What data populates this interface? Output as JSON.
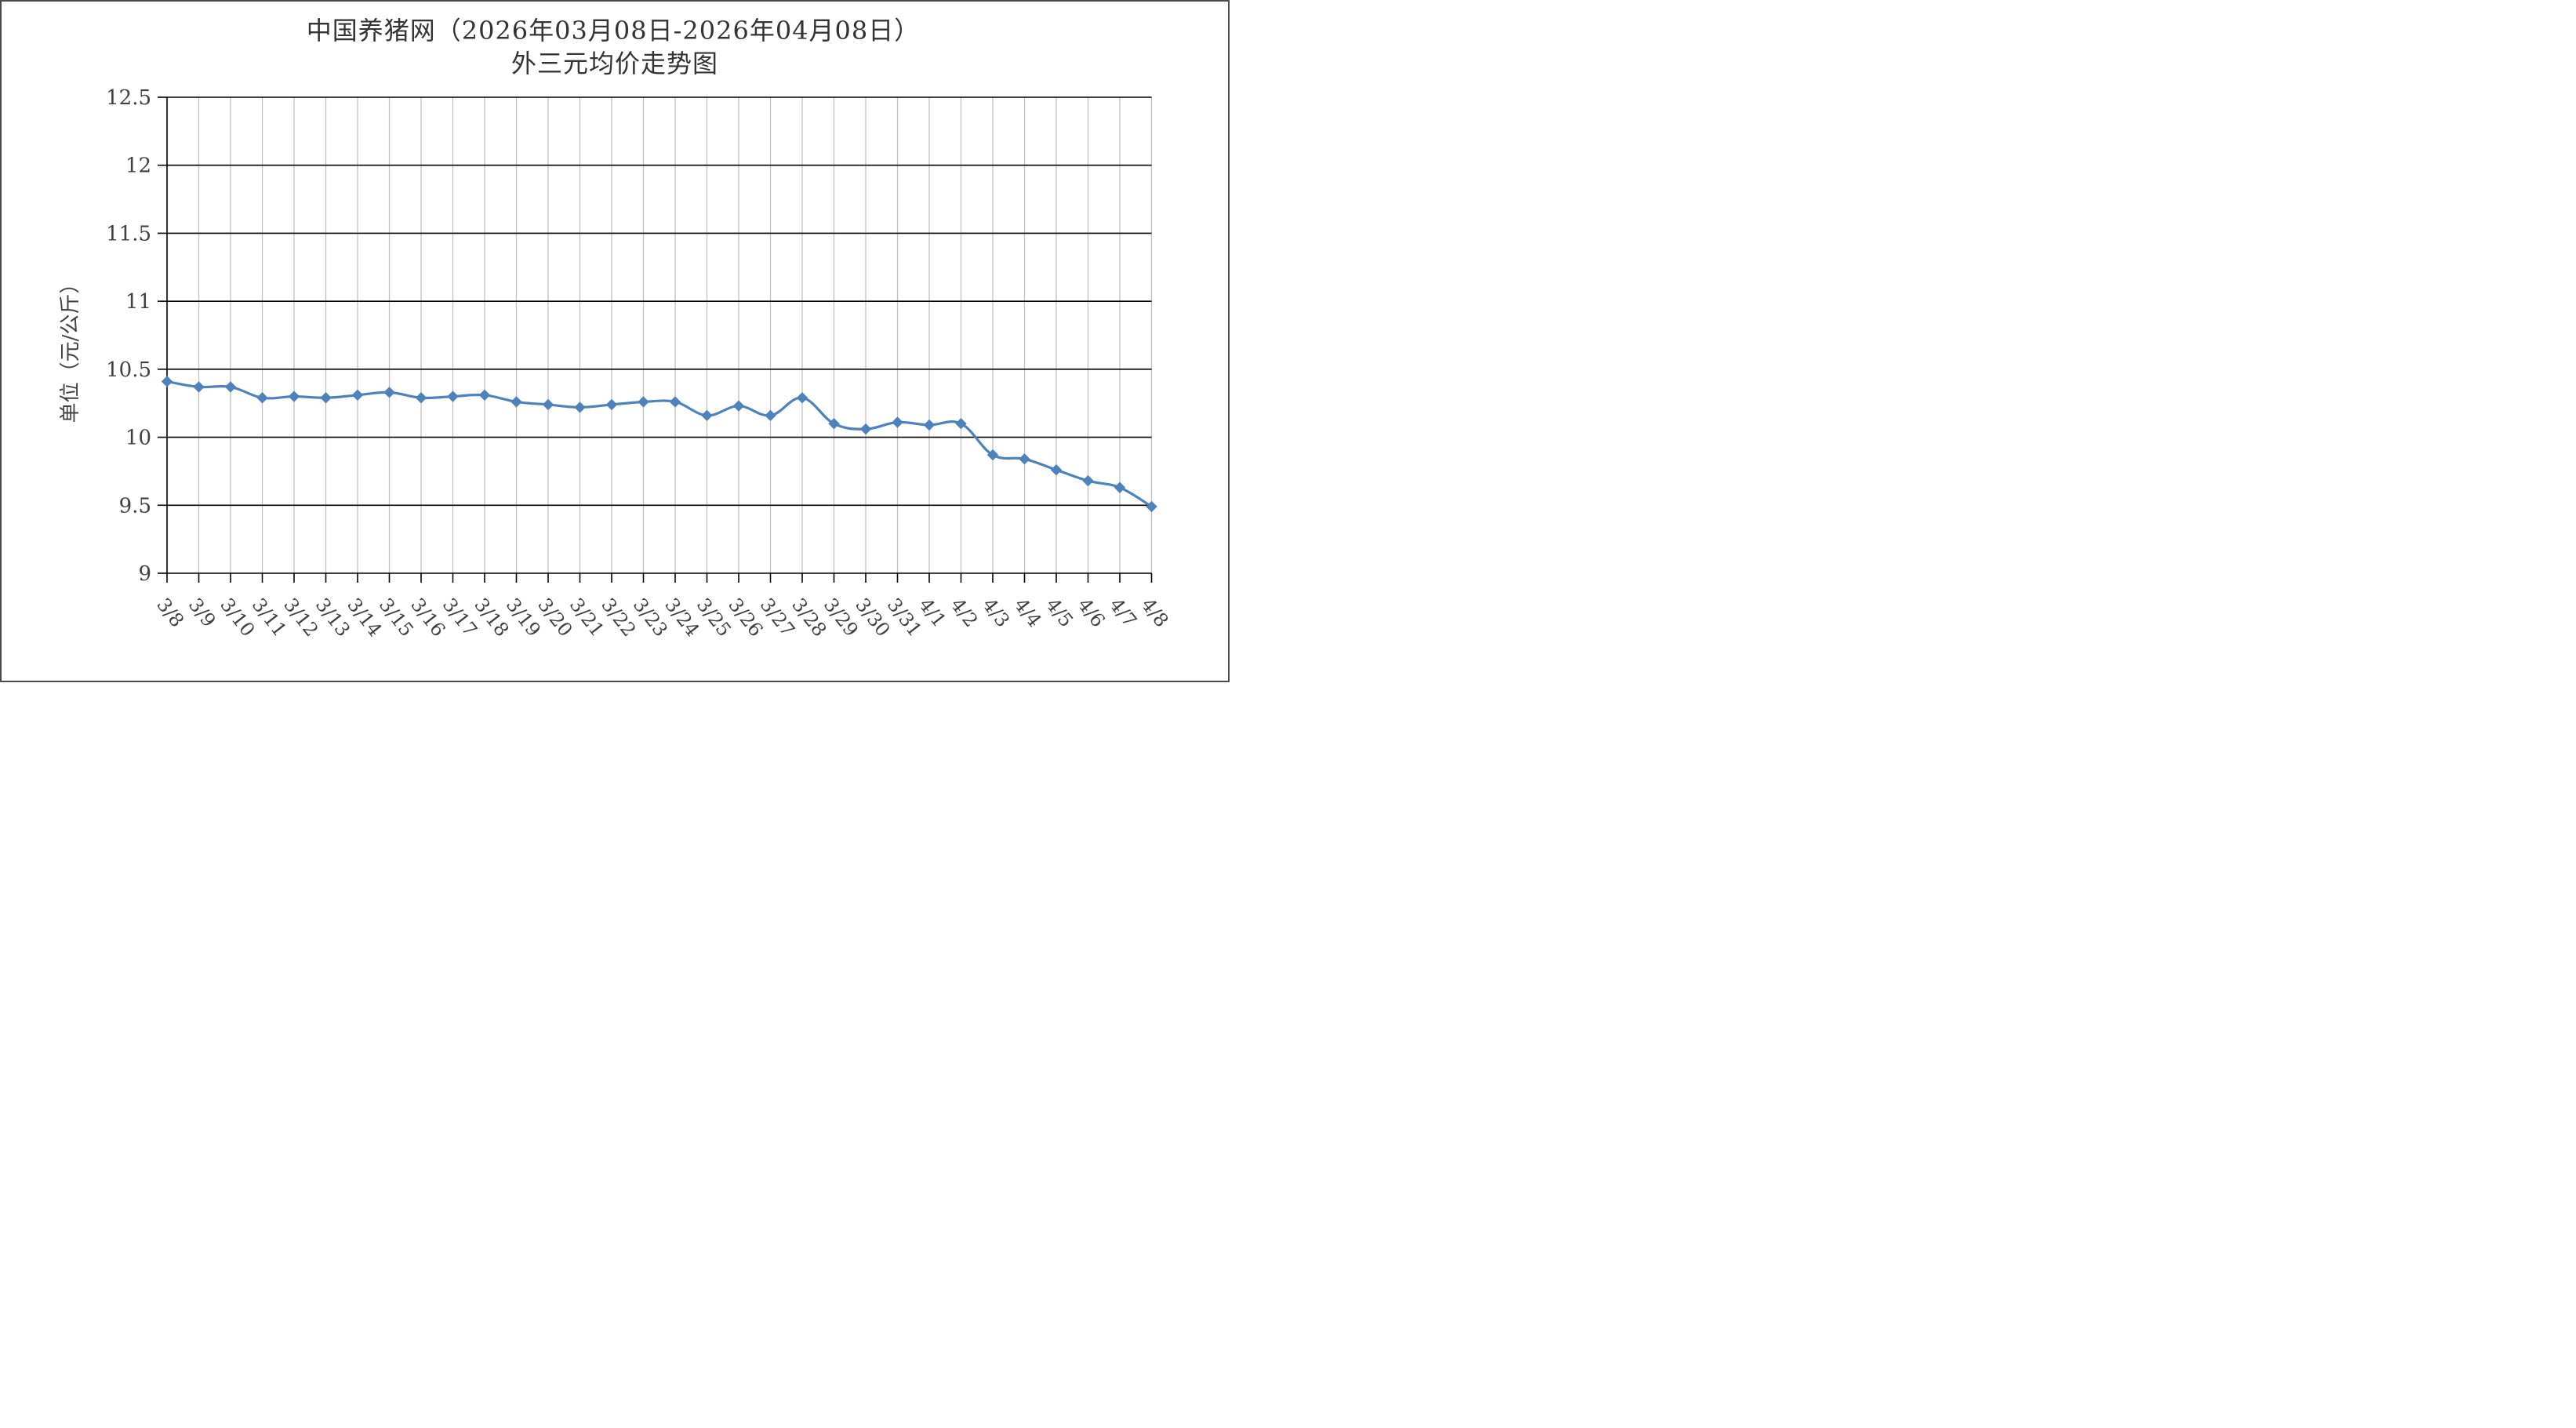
{
  "chart_data": {
    "type": "line",
    "title": "中国养猪网（2026年03月08日-2026年04月08日）",
    "subtitle": "外三元均价走势图",
    "ylabel": "单位（元/公斤）",
    "xlabel": "",
    "ylim": [
      9,
      12.5
    ],
    "yticks": [
      "12.5",
      "12",
      "11.5",
      "11",
      "10.5",
      "10",
      "9.5",
      "9"
    ],
    "ytick_values": [
      12.5,
      12,
      11.5,
      11,
      10.5,
      10,
      9.5,
      9
    ],
    "grid": "on",
    "legend": "none",
    "line_color": "#4f81bd",
    "categories": [
      "3/8",
      "3/9",
      "3/10",
      "3/11",
      "3/12",
      "3/13",
      "3/14",
      "3/15",
      "3/16",
      "3/17",
      "3/18",
      "3/19",
      "3/20",
      "3/21",
      "3/22",
      "3/23",
      "3/24",
      "3/25",
      "3/26",
      "3/27",
      "3/28",
      "3/29",
      "3/30",
      "3/31",
      "4/1",
      "4/2",
      "4/3",
      "4/4",
      "4/5",
      "4/6",
      "4/7",
      "4/8"
    ],
    "series": [
      {
        "values": [
          10.41,
          10.37,
          10.37,
          10.29,
          10.3,
          10.29,
          10.31,
          10.33,
          10.29,
          10.3,
          10.31,
          10.26,
          10.24,
          10.22,
          10.24,
          10.26,
          10.26,
          10.16,
          10.23,
          10.16,
          10.29,
          10.1,
          10.06,
          10.11,
          10.09,
          10.1,
          9.87,
          9.84,
          9.76,
          9.68,
          9.63,
          9.49
        ]
      }
    ]
  }
}
